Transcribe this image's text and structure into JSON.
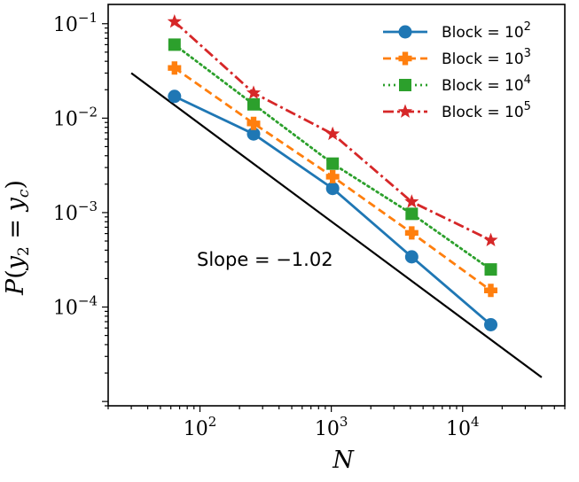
{
  "chart_data": {
    "type": "line",
    "xscale": "log",
    "yscale": "log",
    "xlabel": "N",
    "ylabel": "P(y2 = yc)",
    "xlim": [
      20,
      60000
    ],
    "ylim": [
      9e-06,
      0.16
    ],
    "x": [
      64,
      256,
      1024,
      4096,
      16384
    ],
    "x_ticks": [
      {
        "value": 100,
        "base": "10",
        "exp": "2"
      },
      {
        "value": 1000,
        "base": "10",
        "exp": "3"
      },
      {
        "value": 10000,
        "base": "10",
        "exp": "4"
      }
    ],
    "y_ticks": [
      {
        "value": 0.1,
        "base": "10",
        "exp": "−1"
      },
      {
        "value": 0.01,
        "base": "10",
        "exp": "−2"
      },
      {
        "value": 0.001,
        "base": "10",
        "exp": "−3"
      },
      {
        "value": 0.0001,
        "base": "10",
        "exp": "−4"
      }
    ],
    "series": [
      {
        "name": "Block = 10^2",
        "legend_prefix": "Block = 10",
        "legend_exp": "2",
        "color": "#1f77b4",
        "marker": "circle",
        "dash": "",
        "values": [
          0.017,
          0.0068,
          0.0018,
          0.00034,
          6.5e-05
        ]
      },
      {
        "name": "Block = 10^3",
        "legend_prefix": "Block = 10",
        "legend_exp": "3",
        "color": "#ff7f0e",
        "marker": "plus",
        "dash": "9,5",
        "values": [
          0.034,
          0.0088,
          0.0024,
          0.00061,
          0.00015
        ]
      },
      {
        "name": "Block = 10^4",
        "legend_prefix": "Block = 10",
        "legend_exp": "4",
        "color": "#2ca02c",
        "marker": "square",
        "dash": "2,4",
        "values": [
          0.06,
          0.014,
          0.0033,
          0.00097,
          0.00025
        ]
      },
      {
        "name": "Block = 10^5",
        "legend_prefix": "Block = 10",
        "legend_exp": "5",
        "color": "#d62728",
        "marker": "star",
        "dash": "12,4,3,4",
        "values": [
          0.105,
          0.0185,
          0.0068,
          0.0013,
          0.00051
        ]
      }
    ],
    "reference_line": {
      "x": [
        30,
        40000
      ],
      "y": [
        0.03,
        1.8e-05
      ],
      "color": "#000000"
    },
    "annotation": "Slope = −1.02",
    "legend_position": "top-right"
  }
}
